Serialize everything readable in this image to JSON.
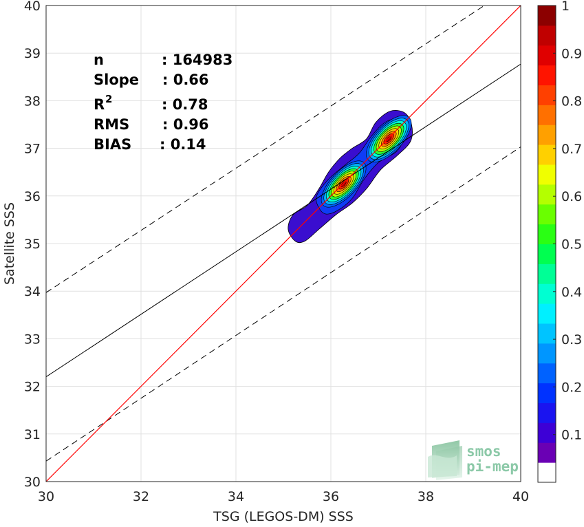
{
  "chart_data": {
    "type": "heatmap",
    "subtype": "density-contour-scatter",
    "xlabel": "TSG (LEGOS-DM) SSS",
    "ylabel": "Satellite SSS",
    "xlim": [
      30,
      40
    ],
    "ylim": [
      30,
      40
    ],
    "x_ticks": [
      "30",
      "32",
      "34",
      "36",
      "38",
      "40"
    ],
    "y_ticks": [
      "30",
      "31",
      "32",
      "33",
      "34",
      "35",
      "36",
      "37",
      "38",
      "39",
      "40"
    ],
    "grid": true,
    "stats": {
      "n_label": "n",
      "n_value": ": 164983",
      "slope_label": "Slope",
      "slope_value": ": 0.66",
      "r2_label": "R",
      "r2_sup": "2",
      "r2_value": ": 0.78",
      "rms_label": "RMS",
      "rms_value": ": 0.96",
      "bias_label": "BIAS",
      "bias_value": ": 0.14"
    },
    "lines": {
      "identity": {
        "points": [
          [
            30,
            30
          ],
          [
            40,
            40
          ]
        ],
        "color": "#ff0000"
      },
      "fit": {
        "points": [
          [
            30,
            32.2
          ],
          [
            40,
            38.77
          ]
        ],
        "color": "#000000"
      },
      "upper_bound": {
        "points": [
          [
            30,
            33.97
          ],
          [
            40,
            40.5
          ]
        ],
        "color": "#000000",
        "dash": true
      },
      "lower_bound": {
        "points": [
          [
            30,
            30.43
          ],
          [
            40,
            37.03
          ]
        ],
        "color": "#000000",
        "dash": true
      }
    },
    "density_peaks": [
      {
        "x": 36.27,
        "y": 36.25
      },
      {
        "x": 37.22,
        "y": 37.2
      }
    ],
    "colorbar": {
      "range": [
        0,
        1
      ],
      "ticks": [
        "0.1",
        "0.2",
        "0.3",
        "0.4",
        "0.5",
        "0.6",
        "0.7",
        "0.8",
        "0.9",
        "1"
      ],
      "colors": [
        "#ffffff",
        "#6a00b4",
        "#3d00d6",
        "#1a14f0",
        "#0032ff",
        "#0062ff",
        "#0096ff",
        "#00c4ff",
        "#00f0ff",
        "#00ffd2",
        "#00ff96",
        "#00ff50",
        "#2aff14",
        "#6aff00",
        "#b4ff00",
        "#f0ff00",
        "#ffd000",
        "#ffa000",
        "#ff7000",
        "#ff4000",
        "#ff1400",
        "#e00000",
        "#c00000",
        "#8c0000"
      ]
    }
  },
  "logo": {
    "line1": "smos",
    "line2": "pi-mep"
  }
}
